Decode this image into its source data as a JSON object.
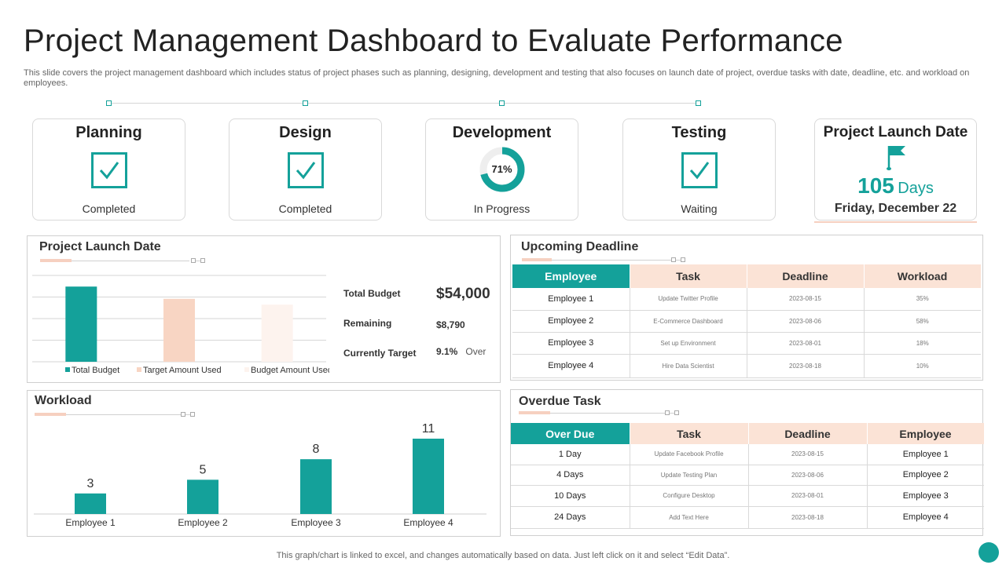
{
  "page": {
    "title": "Project Management Dashboard to Evaluate Performance",
    "subtitle": "This slide covers the project management dashboard which includes status of project phases such as planning, designing, development and testing that also focuses on launch date of project, overdue tasks with date, deadline, etc. and workload on employees.",
    "footer": "This graph/chart is linked to excel,  and changes automatically based on data. Just left click on it and select “Edit Data”."
  },
  "phases": [
    {
      "title": "Planning",
      "status": "Completed",
      "icon": "checkbox-icon"
    },
    {
      "title": "Design",
      "status": "Completed",
      "icon": "checkbox-icon"
    },
    {
      "title": "Development",
      "status": "In Progress",
      "progress_label": "71%",
      "progress": 0.71
    },
    {
      "title": "Testing",
      "status": "Waiting",
      "icon": "checkbox-icon"
    }
  ],
  "launch_card": {
    "title": "Project Launch Date",
    "icon": "flag-icon",
    "days_number": "105",
    "days_unit": "Days",
    "date": "Friday, December 22"
  },
  "budget_panel": {
    "title": "Project Launch Date",
    "total_budget_label": "Total Budget",
    "total_budget_value": "$54,000",
    "remaining_label": "Remaining",
    "remaining_value": "$8,790",
    "target_label": "Currently Target",
    "target_value": "9.1%",
    "target_suffix": "Over"
  },
  "deadline_panel": {
    "title": "Upcoming Deadline",
    "headers": [
      "Employee",
      "Task",
      "Deadline",
      "Workload"
    ],
    "rows": [
      [
        "Employee  1",
        "Update  Twitter Profile",
        "2023-08-15",
        "35%"
      ],
      [
        "Employee  2",
        "E-Commerce Dashboard",
        "2023-08-06",
        "58%"
      ],
      [
        "Employee  3",
        "Set up Environment",
        "2023-08-01",
        "18%"
      ],
      [
        "Employee  4",
        "Hire Data Scientist",
        "2023-08-18",
        "10%"
      ]
    ]
  },
  "workload_panel": {
    "title": "Workload"
  },
  "overdue_panel": {
    "title": "Overdue Task",
    "headers": [
      "Over Due",
      "Task",
      "Deadline",
      "Employee"
    ],
    "rows": [
      [
        "1 Day",
        "Update  Facebook  Profile",
        "2023-08-15",
        "Employee  1"
      ],
      [
        "4 Days",
        "Update  Testing Plan",
        "2023-08-06",
        "Employee  2"
      ],
      [
        "10 Days",
        "Configure  Desktop",
        "2023-08-01",
        "Employee  3"
      ],
      [
        "24 Days",
        "Add Text Here",
        "2023-08-18",
        "Employee  4"
      ]
    ]
  },
  "colors": {
    "teal": "#14a19a",
    "peach": "#f8d5c3",
    "light_peach": "#fdf3ee"
  },
  "chart_data": [
    {
      "type": "bar",
      "categories": [
        "Total Budget",
        "Target Amount Used",
        "Budget Amount Used"
      ],
      "values": [
        54000,
        45210,
        41000
      ],
      "series_colors": [
        "#14a19a",
        "#f8d5c3",
        "#fdf3ee"
      ],
      "legend": [
        "Total Budget",
        "Target Amount Used",
        "Budget Amount Used"
      ],
      "legend_position": "bottom",
      "ylim": [
        0,
        62000
      ],
      "grid": true
    },
    {
      "type": "bar",
      "categories": [
        "Employee 1",
        "Employee 2",
        "Employee 3",
        "Employee 4"
      ],
      "values": [
        3,
        5,
        8,
        11
      ],
      "data_labels": [
        "3",
        "5",
        "8",
        "11"
      ],
      "ylim": [
        0,
        11
      ],
      "grid": false
    }
  ]
}
